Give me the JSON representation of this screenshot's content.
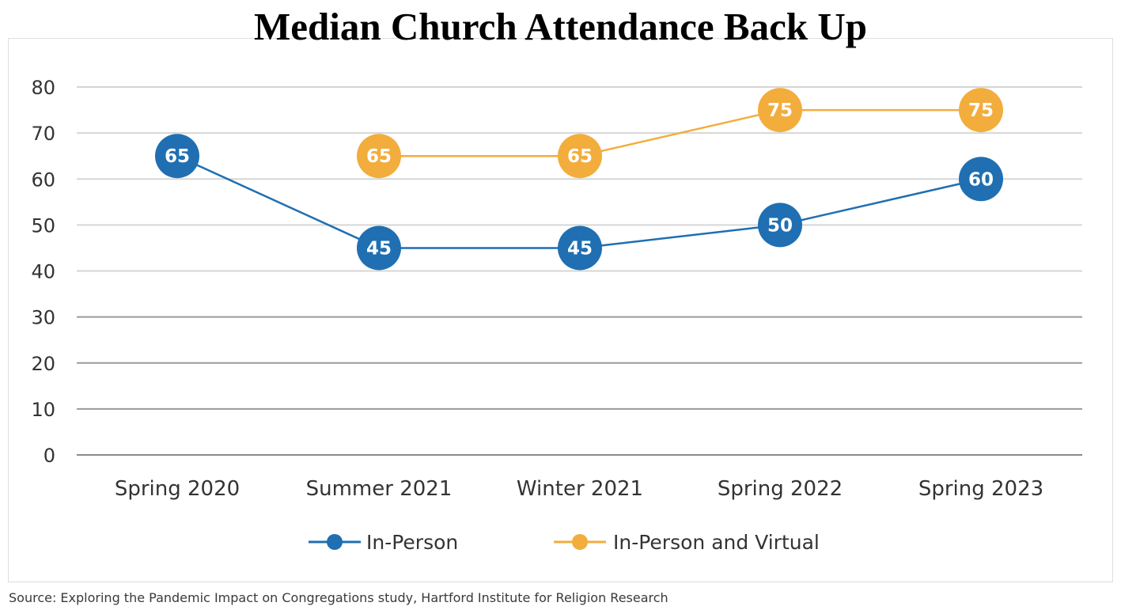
{
  "chart_data": {
    "type": "line",
    "title": "Median Church Attendance Back Up",
    "categories": [
      "Spring 2020",
      "Summer 2021",
      "Winter 2021",
      "Spring 2022",
      "Spring 2023"
    ],
    "ylim": [
      0,
      80
    ],
    "yticks": [
      0,
      10,
      20,
      30,
      40,
      50,
      60,
      70,
      80
    ],
    "grid": true,
    "legend_position": "bottom",
    "data_labels": true,
    "series": [
      {
        "name": "In-Person",
        "color": "#1f6fb2",
        "values": [
          65,
          45,
          45,
          50,
          60
        ]
      },
      {
        "name": "In-Person and Virtual",
        "color": "#f2ad3d",
        "values": [
          null,
          65,
          65,
          75,
          75
        ]
      }
    ],
    "source": "Source: Exploring the Pandemic Impact on Congregations study, Hartford Institute for Religion Research"
  }
}
